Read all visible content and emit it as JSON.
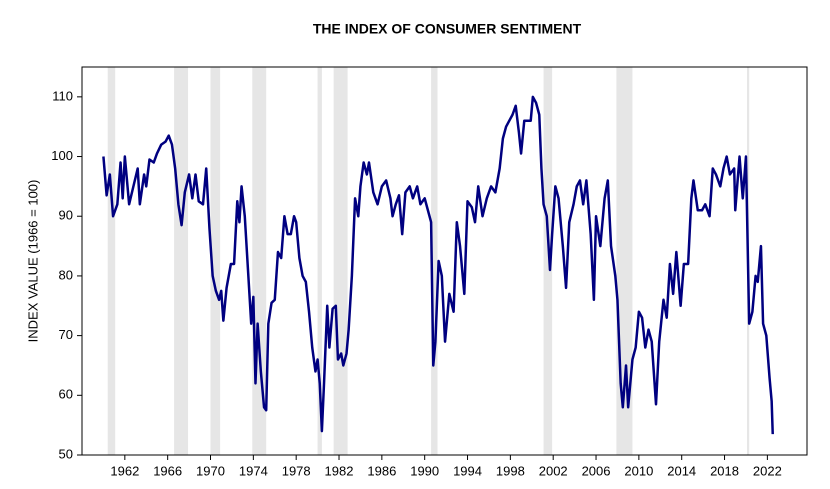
{
  "chart_data": {
    "type": "line",
    "title": "THE INDEX OF CONSUMER SENTIMENT",
    "ylabel": "INDEX VALUE (1966 = 100)",
    "color": "#000080",
    "band_color": "#e6e6e6",
    "xlim": [
      1958,
      2025.7
    ],
    "xticks": [
      1962,
      1966,
      1970,
      1974,
      1978,
      1982,
      1986,
      1990,
      1994,
      1998,
      2002,
      2006,
      2010,
      2014,
      2018,
      2022
    ],
    "ylim": [
      50,
      115
    ],
    "yticks": [
      50,
      60,
      70,
      80,
      90,
      100,
      110
    ],
    "shaded_periods": [
      [
        1960.4,
        1961.1
      ],
      [
        1966.6,
        1967.9
      ],
      [
        1970.0,
        1970.9
      ],
      [
        1973.9,
        1975.2
      ],
      [
        1980.0,
        1980.4
      ],
      [
        1981.5,
        1982.8
      ],
      [
        1990.6,
        1991.2
      ],
      [
        2001.1,
        2001.9
      ],
      [
        2007.9,
        2009.4
      ],
      [
        2020.1,
        2020.3
      ]
    ],
    "x": [
      1960.0,
      1960.3,
      1960.6,
      1960.9,
      1961.3,
      1961.6,
      1961.8,
      1962.0,
      1962.4,
      1962.8,
      1963.2,
      1963.4,
      1963.8,
      1964.0,
      1964.3,
      1964.7,
      1965.0,
      1965.4,
      1965.8,
      1966.1,
      1966.4,
      1966.7,
      1967.0,
      1967.3,
      1967.6,
      1968.0,
      1968.3,
      1968.6,
      1968.9,
      1969.3,
      1969.6,
      1969.9,
      1970.2,
      1970.5,
      1970.8,
      1971.0,
      1971.2,
      1971.5,
      1971.9,
      1972.2,
      1972.5,
      1972.7,
      1972.9,
      1973.2,
      1973.5,
      1973.8,
      1974.0,
      1974.2,
      1974.4,
      1974.7,
      1975.0,
      1975.2,
      1975.4,
      1975.7,
      1976.0,
      1976.3,
      1976.6,
      1976.9,
      1977.2,
      1977.5,
      1977.8,
      1978.0,
      1978.3,
      1978.6,
      1978.9,
      1979.2,
      1979.5,
      1979.8,
      1980.0,
      1980.2,
      1980.4,
      1980.6,
      1980.9,
      1981.1,
      1981.4,
      1981.7,
      1981.9,
      1982.2,
      1982.4,
      1982.7,
      1982.9,
      1983.2,
      1983.5,
      1983.8,
      1984.0,
      1984.3,
      1984.6,
      1984.8,
      1985.2,
      1985.6,
      1986.0,
      1986.4,
      1986.8,
      1987.0,
      1987.3,
      1987.6,
      1987.9,
      1988.2,
      1988.6,
      1988.9,
      1989.3,
      1989.6,
      1990.0,
      1990.3,
      1990.6,
      1990.8,
      1991.0,
      1991.3,
      1991.6,
      1991.9,
      1992.3,
      1992.7,
      1993.0,
      1993.3,
      1993.7,
      1994.0,
      1994.4,
      1994.7,
      1995.0,
      1995.4,
      1995.8,
      1996.2,
      1996.6,
      1997.0,
      1997.3,
      1997.6,
      1997.9,
      1998.2,
      1998.5,
      1998.8,
      1999.0,
      1999.3,
      1999.6,
      1999.9,
      2000.1,
      2000.4,
      2000.7,
      2000.9,
      2001.1,
      2001.4,
      2001.7,
      2001.9,
      2002.2,
      2002.5,
      2002.9,
      2003.2,
      2003.5,
      2003.9,
      2004.2,
      2004.5,
      2004.8,
      2005.1,
      2005.5,
      2005.8,
      2006.0,
      2006.4,
      2006.8,
      2007.1,
      2007.4,
      2007.8,
      2008.0,
      2008.3,
      2008.5,
      2008.8,
      2009.0,
      2009.4,
      2009.7,
      2010.0,
      2010.3,
      2010.6,
      2010.9,
      2011.2,
      2011.6,
      2011.9,
      2012.3,
      2012.6,
      2012.9,
      2013.2,
      2013.5,
      2013.9,
      2014.2,
      2014.6,
      2014.9,
      2015.1,
      2015.5,
      2015.9,
      2016.2,
      2016.6,
      2016.9,
      2017.2,
      2017.6,
      2017.9,
      2018.2,
      2018.5,
      2018.9,
      2019.0,
      2019.4,
      2019.7,
      2020.0,
      2020.3,
      2020.6,
      2020.9,
      2021.1,
      2021.4,
      2021.6,
      2021.9,
      2022.2,
      2022.4,
      2022.5
    ],
    "values": [
      100,
      93.5,
      97,
      90,
      92,
      99,
      93,
      100,
      92,
      95,
      98,
      92,
      97,
      95,
      99.5,
      99,
      100.5,
      102,
      102.5,
      103.5,
      102,
      98,
      92,
      88.5,
      94,
      97,
      93,
      97,
      92.5,
      92,
      98,
      88,
      80,
      77.5,
      76,
      77.5,
      72.5,
      78,
      82,
      82,
      92.5,
      89,
      95,
      90,
      81,
      72,
      76.5,
      62,
      72,
      64,
      58,
      57.5,
      72,
      75.5,
      76,
      84,
      83,
      90,
      87,
      87,
      90,
      89,
      83,
      80,
      79,
      74,
      68,
      64,
      66,
      62,
      54,
      62,
      75,
      68,
      74.5,
      75,
      66,
      67,
      65,
      67,
      71,
      80,
      93,
      90,
      95,
      99,
      97,
      99,
      94,
      92,
      95,
      96,
      93,
      90,
      92,
      93.5,
      87,
      94,
      95,
      93,
      95,
      92,
      93,
      91,
      89,
      65,
      69,
      82.5,
      80,
      69,
      77,
      74,
      89,
      85,
      77,
      92.5,
      91.5,
      89,
      95,
      90,
      93,
      95,
      94,
      98,
      103,
      105,
      106,
      107,
      108.5,
      104,
      100.5,
      106,
      106,
      106,
      110,
      109,
      107,
      98,
      92,
      90,
      81,
      87,
      95,
      93,
      85,
      78,
      89,
      92,
      95,
      96,
      92,
      96,
      87,
      76,
      90,
      85,
      93,
      96,
      85,
      80,
      76,
      62,
      58,
      65,
      58,
      66,
      68,
      74,
      73,
      68,
      71,
      69,
      58.5,
      69,
      76,
      73,
      82,
      77,
      84,
      75,
      82,
      82,
      93,
      96,
      91,
      91,
      92,
      90,
      98,
      97,
      95,
      98,
      100,
      97,
      98,
      91,
      100,
      93,
      100,
      72,
      74,
      80,
      79,
      85,
      72,
      70,
      63,
      59,
      53.5
    ]
  }
}
